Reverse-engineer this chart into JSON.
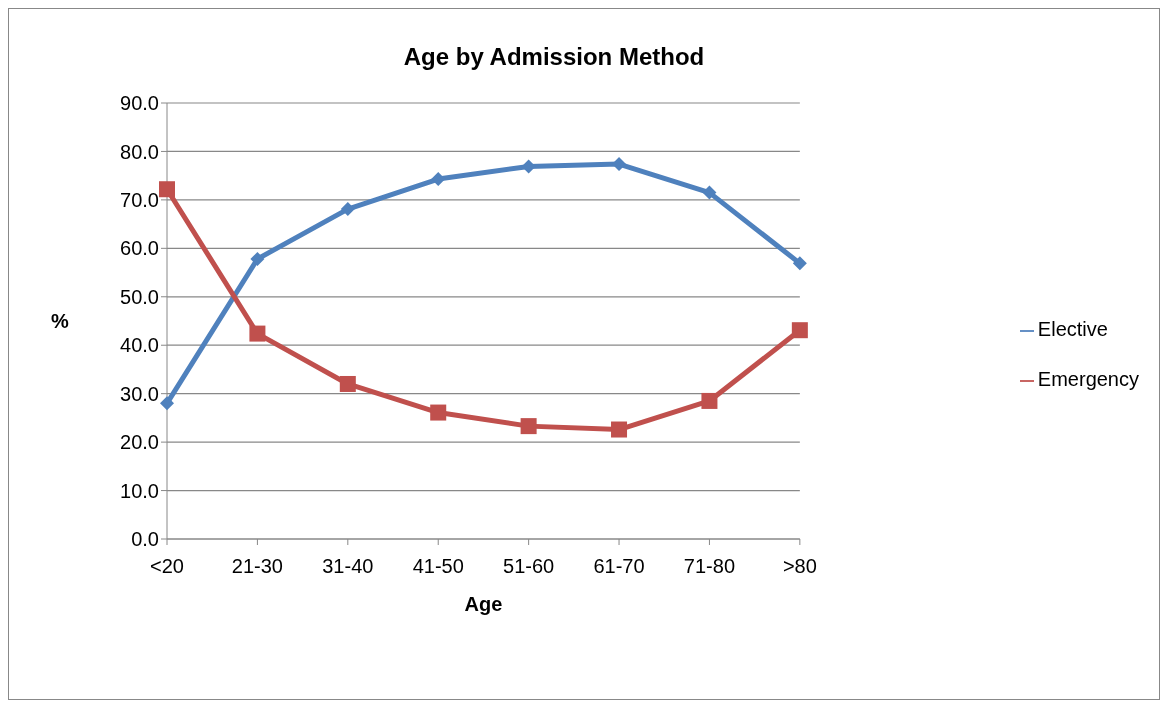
{
  "chart_data": {
    "type": "line",
    "title": "Age by Admission Method",
    "xlabel": "Age",
    "ylabel": "%",
    "categories": [
      "<20",
      "21-30",
      "31-40",
      "41-50",
      "51-60",
      "61-70",
      "71-80",
      ">80"
    ],
    "series": [
      {
        "name": "Elective",
        "color": "#4f81bd",
        "marker": "diamond",
        "values": [
          28.0,
          57.8,
          68.1,
          74.3,
          76.9,
          77.4,
          71.5,
          56.9
        ]
      },
      {
        "name": "Emergency",
        "color": "#c0504d",
        "marker": "square",
        "values": [
          72.2,
          42.4,
          32.0,
          26.1,
          23.3,
          22.6,
          28.5,
          43.1
        ]
      }
    ],
    "ylim": [
      0,
      90
    ],
    "yticks": [
      {
        "value": 0,
        "label": "0.0"
      },
      {
        "value": 10,
        "label": "10.0"
      },
      {
        "value": 20,
        "label": "20.0"
      },
      {
        "value": 30,
        "label": "30.0"
      },
      {
        "value": 40,
        "label": "40.0"
      },
      {
        "value": 50,
        "label": "50.0"
      },
      {
        "value": 60,
        "label": "60.0"
      },
      {
        "value": 70,
        "label": "70.0"
      },
      {
        "value": 80,
        "label": "80.0"
      },
      {
        "value": 90,
        "label": "90.0"
      }
    ],
    "grid": "y",
    "legend": "right",
    "line_style": "solid"
  }
}
